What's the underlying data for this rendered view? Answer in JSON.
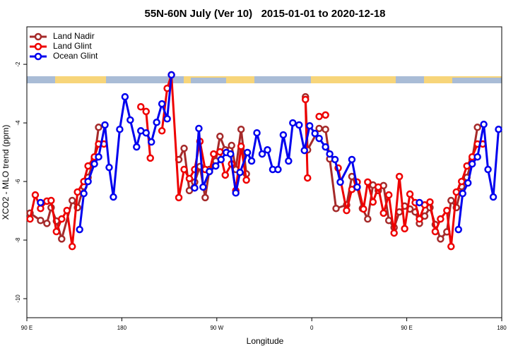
{
  "chart_data": {
    "type": "line",
    "title": "55N-60N July (Ver 10)   2015-01-01 to 2020-12-18",
    "xlabel": "Longitude",
    "ylabel": "XCO2 - MLO trend (ppm)",
    "xlim": [
      90,
      540
    ],
    "ylim": [
      -10.65,
      -0.72
    ],
    "xticks": [
      {
        "value": 90,
        "label": "90 E"
      },
      180,
      {
        "value": 270,
        "label": "90 W"
      },
      {
        "value": 360,
        "label": "0"
      },
      {
        "value": 450,
        "label": "90 E"
      },
      {
        "value": 540,
        "label": "180"
      }
    ],
    "yticks": [
      -2,
      -4,
      -6,
      -8,
      -10
    ],
    "legend": "top-left",
    "series": [
      {
        "name": "Land Nadir",
        "color": "#a52a2a",
        "x": [
          93,
          103,
          109,
          113,
          118,
          123,
          133,
          138,
          144,
          148,
          154,
          158,
          null,
          234,
          239,
          244,
          249,
          254,
          259,
          263,
          269,
          273,
          278,
          284,
          288,
          293,
          298,
          null,
          354,
          356,
          367,
          373,
          377,
          383,
          393,
          398,
          403,
          408,
          413,
          418,
          423,
          428,
          433,
          438,
          443,
          448,
          453,
          458,
          462,
          467,
          472,
          477,
          482,
          488,
          492,
          497,
          502,
          507,
          512,
          517
        ],
        "values": [
          -7.08,
          -7.33,
          -7.43,
          -6.89,
          -7.35,
          -7.96,
          -6.65,
          -6.89,
          -6.17,
          -5.86,
          -5.23,
          -4.15,
          null,
          -5.25,
          -4.87,
          -6.31,
          -6.02,
          -5.49,
          -6.55,
          -5.59,
          -5.3,
          -4.46,
          -4.92,
          -4.77,
          -5.59,
          -4.22,
          -5.74,
          null,
          -3.11,
          -4.92,
          -4.19,
          -4.22,
          -5.23,
          -6.92,
          -6.8,
          -5.83,
          -6.19,
          -6.92,
          -7.28,
          -6.12,
          -6.31,
          -6.14,
          -7.33,
          -7.57,
          -7.04,
          -6.84,
          -6.94,
          -7.04,
          -7.43,
          -7.18,
          -6.89,
          -7.47,
          -7.96,
          -7.72,
          -6.65,
          -6.89,
          -6.17,
          -5.86,
          -5.25,
          -4.15
        ]
      },
      {
        "name": "Land Glint",
        "color": "#ee0000",
        "x": [
          93,
          98,
          103,
          109,
          113,
          118,
          123,
          128,
          133,
          138,
          144,
          148,
          154,
          158,
          163,
          null,
          198,
          203,
          207,
          null,
          218,
          223,
          227,
          234,
          239,
          244,
          249,
          254,
          259,
          263,
          267,
          273,
          278,
          284,
          288,
          293,
          298,
          null,
          354,
          356,
          null,
          367,
          373,
          null,
          385,
          393,
          398,
          403,
          409,
          413,
          418,
          423,
          428,
          433,
          438,
          443,
          448,
          453,
          458,
          462,
          467,
          472,
          477,
          482,
          488,
          492,
          497,
          502,
          507,
          512,
          517,
          522
        ],
        "values": [
          -7.28,
          -6.46,
          -6.92,
          -6.67,
          -6.65,
          -7.71,
          -7.28,
          -6.99,
          -8.22,
          -6.36,
          -6.0,
          -5.47,
          -5.16,
          -4.72,
          -4.72,
          null,
          -3.45,
          -3.61,
          -5.2,
          null,
          -4.27,
          -2.82,
          -2.36,
          -6.55,
          -5.59,
          -5.9,
          -5.59,
          -4.63,
          -5.59,
          -5.66,
          -5.06,
          -4.99,
          -5.78,
          -5.4,
          -6.31,
          -4.8,
          -5.95,
          null,
          -3.2,
          -5.88,
          null,
          -3.78,
          -3.73,
          null,
          -5.54,
          -6.99,
          -6.27,
          -6.02,
          -6.94,
          -6.02,
          -6.7,
          -6.19,
          -7.08,
          -6.46,
          -7.76,
          -5.83,
          -7.61,
          -6.43,
          -6.72,
          -7.28,
          -6.8,
          -6.7,
          -7.71,
          -7.28,
          -6.99,
          -8.22,
          -6.36,
          -6.0,
          -5.47,
          -5.16,
          -4.72,
          -4.72
        ]
      },
      {
        "name": "Ocean Glint",
        "color": "#0000ee",
        "x": [
          103,
          null,
          140,
          144,
          148,
          154,
          158,
          164,
          168,
          172,
          178,
          183,
          188,
          194,
          198,
          203,
          208,
          213,
          218,
          223,
          227,
          null,
          249,
          253,
          257,
          263,
          269,
          274,
          279,
          283,
          288,
          292,
          299,
          303,
          308,
          313,
          318,
          323,
          328,
          333,
          338,
          342,
          348,
          353,
          358,
          363,
          367,
          373,
          377,
          382,
          387,
          398,
          403,
          null,
          462,
          null,
          499,
          503,
          508,
          512,
          517,
          523,
          527,
          532,
          537
        ],
        "values": [
          -6.72,
          null,
          -7.64,
          -6.41,
          -6.0,
          -5.4,
          -5.16,
          -4.07,
          -5.52,
          -6.53,
          -4.22,
          -3.11,
          -3.9,
          -4.82,
          -4.27,
          -4.34,
          -4.65,
          -3.98,
          -3.35,
          -3.86,
          -2.36,
          null,
          -6.22,
          -4.19,
          -6.19,
          -5.66,
          -5.47,
          -5.25,
          -5.01,
          -5.06,
          -6.39,
          -5.69,
          -5.01,
          -5.3,
          -4.34,
          -5.06,
          -4.92,
          -5.59,
          -5.59,
          -4.41,
          -5.3,
          -4.0,
          -4.07,
          -4.94,
          -4.1,
          -4.36,
          -4.53,
          -4.82,
          -5.06,
          -5.25,
          -6.02,
          -5.25,
          -6.19,
          null,
          -6.72,
          null,
          -7.64,
          -6.41,
          -6.05,
          -5.4,
          -5.16,
          -4.05,
          -5.59,
          -6.53,
          -4.22
        ]
      }
    ]
  }
}
